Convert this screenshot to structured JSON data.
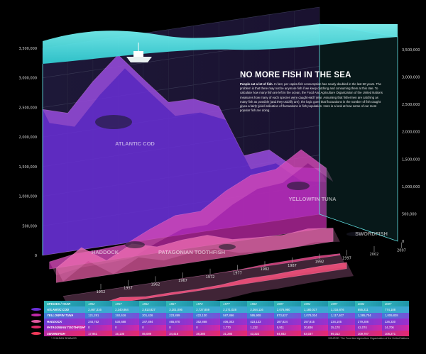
{
  "title": "NO MORE FISH IN THE SEA",
  "intro_lead": "People eat a lot of fish.",
  "intro_body": "In fact, per capita fish consumption has nearly doubled in the last 50 years. The problem is that there may not be anymore fish if we keep catching and consuming them at this rate. To calculate how many fish are left in the ocean, the Food And Agriculture Organization of the United Nations measures how many of each species were caught each year. Assuming that fishermen are catching as many fish as possible (and they usually are), the logic goes that fluctuations in the number of fish caught gives a fairly good indication of fluctuations in fish population. Here is a look at how some of our most popular fish are doing.",
  "table": {
    "header_label": "SPECIES / YEAR",
    "rows": [
      {
        "species": "ATLANTIC COD",
        "values": [
          "2,467,316",
          "2,340,864",
          "2,813,827",
          "3,201,006",
          "2,727,859",
          "2,271,028",
          "2,264,116",
          "2,076,980",
          "1,180,017",
          "1,215,876",
          "855,211",
          "774,188"
        ]
      },
      {
        "species": "YELLOWFIN TUNA",
        "values": [
          "121,281",
          "192,616",
          "201,426",
          "223,859",
          "422,130",
          "587,866",
          "595,908",
          "873,627",
          "1,078,024",
          "1,117,407",
          "1,385,704",
          "1,009,828"
        ]
      },
      {
        "species": "HADDOCK",
        "values": [
          "244,752",
          "530,688",
          "247,494",
          "465,870",
          "352,868",
          "406,303",
          "423,133",
          "287,824",
          "257,815",
          "234,105",
          "279,286",
          "226,330"
        ]
      },
      {
        "species": "PATAGONIAN TOOTHFISH*",
        "values": [
          "0",
          "0",
          "0",
          "0",
          "0",
          "1,770",
          "1,132",
          "5,911",
          "30,836",
          "35,170",
          "42,074",
          "24,706"
        ]
      },
      {
        "species": "SWORDFISH",
        "values": [
          "17,951",
          "15,136",
          "85,089",
          "34,416",
          "38,380",
          "31,280",
          "43,322",
          "84,843",
          "83,037",
          "99,312",
          "109,707",
          "106,271"
        ]
      }
    ]
  },
  "footnote": "* CHILEAN SEABASS",
  "source": "SOURCE: The Food And Agriculture Organization of the United Nations",
  "chart_data": {
    "type": "area",
    "title": "NO MORE FISH IN THE SEA",
    "x": [
      1952,
      1957,
      1962,
      1967,
      1972,
      1977,
      1982,
      1987,
      1992,
      1997,
      2002,
      2007
    ],
    "ylim": [
      0,
      3500000
    ],
    "yticks": [
      "0",
      "500,000",
      "1,000,000",
      "1,500,000",
      "2,000,000",
      "2,500,000",
      "3,000,000",
      "3,500,000"
    ],
    "series": [
      {
        "name": "ATLANTIC COD",
        "values": [
          2467316,
          2340864,
          2813827,
          3201006,
          2727859,
          2271028,
          2264116,
          2076980,
          1180017,
          1215876,
          855211,
          774188
        ],
        "color": "#6a2fd8"
      },
      {
        "name": "YELLOWFIN TUNA",
        "values": [
          121281,
          192616,
          201426,
          223859,
          422130,
          587866,
          595908,
          873627,
          1078024,
          1117407,
          1385704,
          1009828
        ],
        "color": "#c02aa8"
      },
      {
        "name": "HADDOCK",
        "values": [
          244752,
          530688,
          247494,
          465870,
          352868,
          406303,
          423133,
          287824,
          257815,
          234105,
          279286,
          226330
        ],
        "color": "#e05aa0"
      },
      {
        "name": "PATAGONIAN TOOTHFISH",
        "values": [
          0,
          0,
          0,
          0,
          0,
          1770,
          1132,
          5911,
          30836,
          35170,
          42074,
          24706
        ],
        "color": "#e02a6a"
      },
      {
        "name": "SWORDFISH",
        "values": [
          17951,
          15136,
          85089,
          34416,
          38380,
          31280,
          43322,
          84843,
          83037,
          99312,
          109707,
          106271
        ],
        "color": "#f23a5a"
      }
    ],
    "water_color": "#5fe6e8"
  }
}
